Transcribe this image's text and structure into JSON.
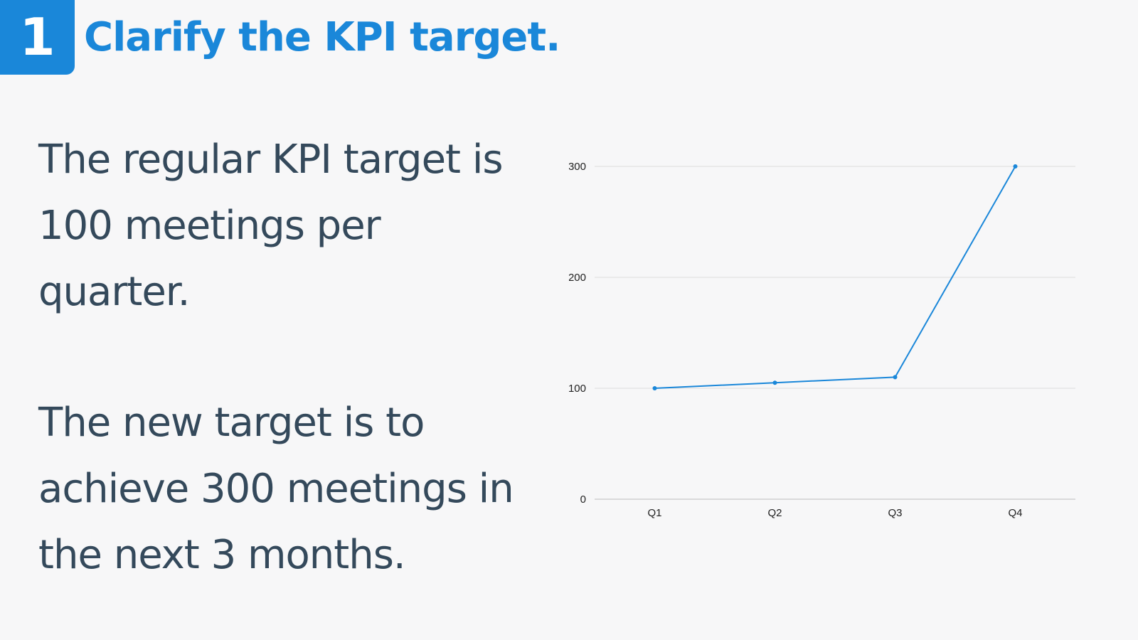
{
  "header": {
    "step_number": "1",
    "title": "Clarify the KPI target."
  },
  "body": {
    "paragraph_1": "The regular KPI target is 100 meetings per quarter.",
    "paragraph_2": "The new target is to achieve 300 meetings in the next 3 months."
  },
  "colors": {
    "accent": "#1a87d9",
    "text": "#34495b",
    "background": "#f7f7f8",
    "grid": "#dddddd"
  },
  "chart_data": {
    "type": "line",
    "categories": [
      "Q1",
      "Q2",
      "Q3",
      "Q4"
    ],
    "series": [
      {
        "values": [
          100,
          105,
          110,
          300
        ]
      }
    ],
    "title": "",
    "xlabel": "",
    "ylabel": "",
    "ylim": [
      0,
      300
    ],
    "yticks": [
      0,
      100,
      200,
      300
    ],
    "grid": true,
    "legend": "none",
    "color": "#1a87d9"
  }
}
